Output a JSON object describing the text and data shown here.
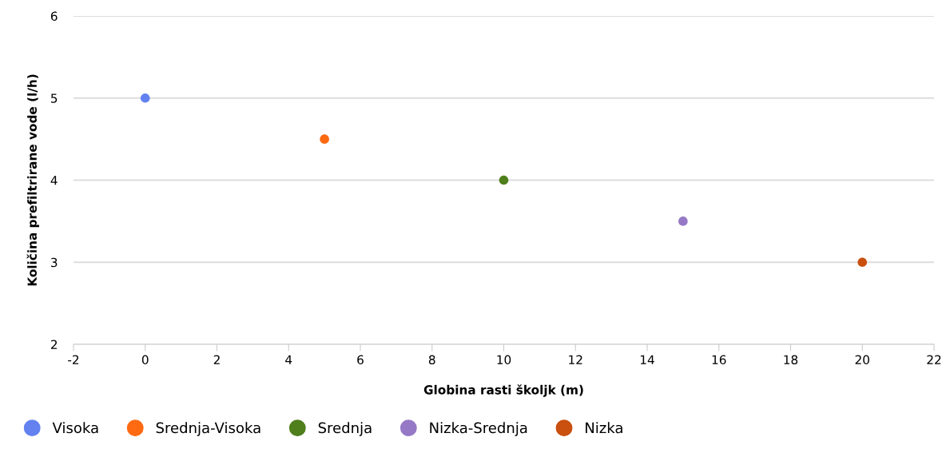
{
  "chart_data": {
    "type": "scatter",
    "xlabel": "Globina rasti školjk (m)",
    "ylabel": "Količina prefiltrirane vode (l/h)",
    "series": [
      {
        "name": "Visoka",
        "color": "#6382f0",
        "x": [
          0
        ],
        "values": [
          5
        ]
      },
      {
        "name": "Srednja-Visoka",
        "color": "#fd6a12",
        "x": [
          5
        ],
        "values": [
          4.5
        ]
      },
      {
        "name": "Srednja",
        "color": "#4f7f1c",
        "x": [
          10
        ],
        "values": [
          4
        ]
      },
      {
        "name": "Nizka-Srednja",
        "color": "#9679c6",
        "x": [
          15
        ],
        "values": [
          3.5
        ]
      },
      {
        "name": "Nizka",
        "color": "#c9500f",
        "x": [
          20
        ],
        "values": [
          3
        ]
      }
    ],
    "xlim": [
      -2,
      22
    ],
    "xticks": [
      -2,
      0,
      2,
      4,
      6,
      8,
      10,
      12,
      14,
      16,
      18,
      20,
      22
    ],
    "ylim": [
      2,
      6
    ],
    "yticks": [
      2,
      3,
      4,
      5,
      6
    ],
    "grid": "y",
    "legend": "bottom left",
    "marker": "circle"
  }
}
